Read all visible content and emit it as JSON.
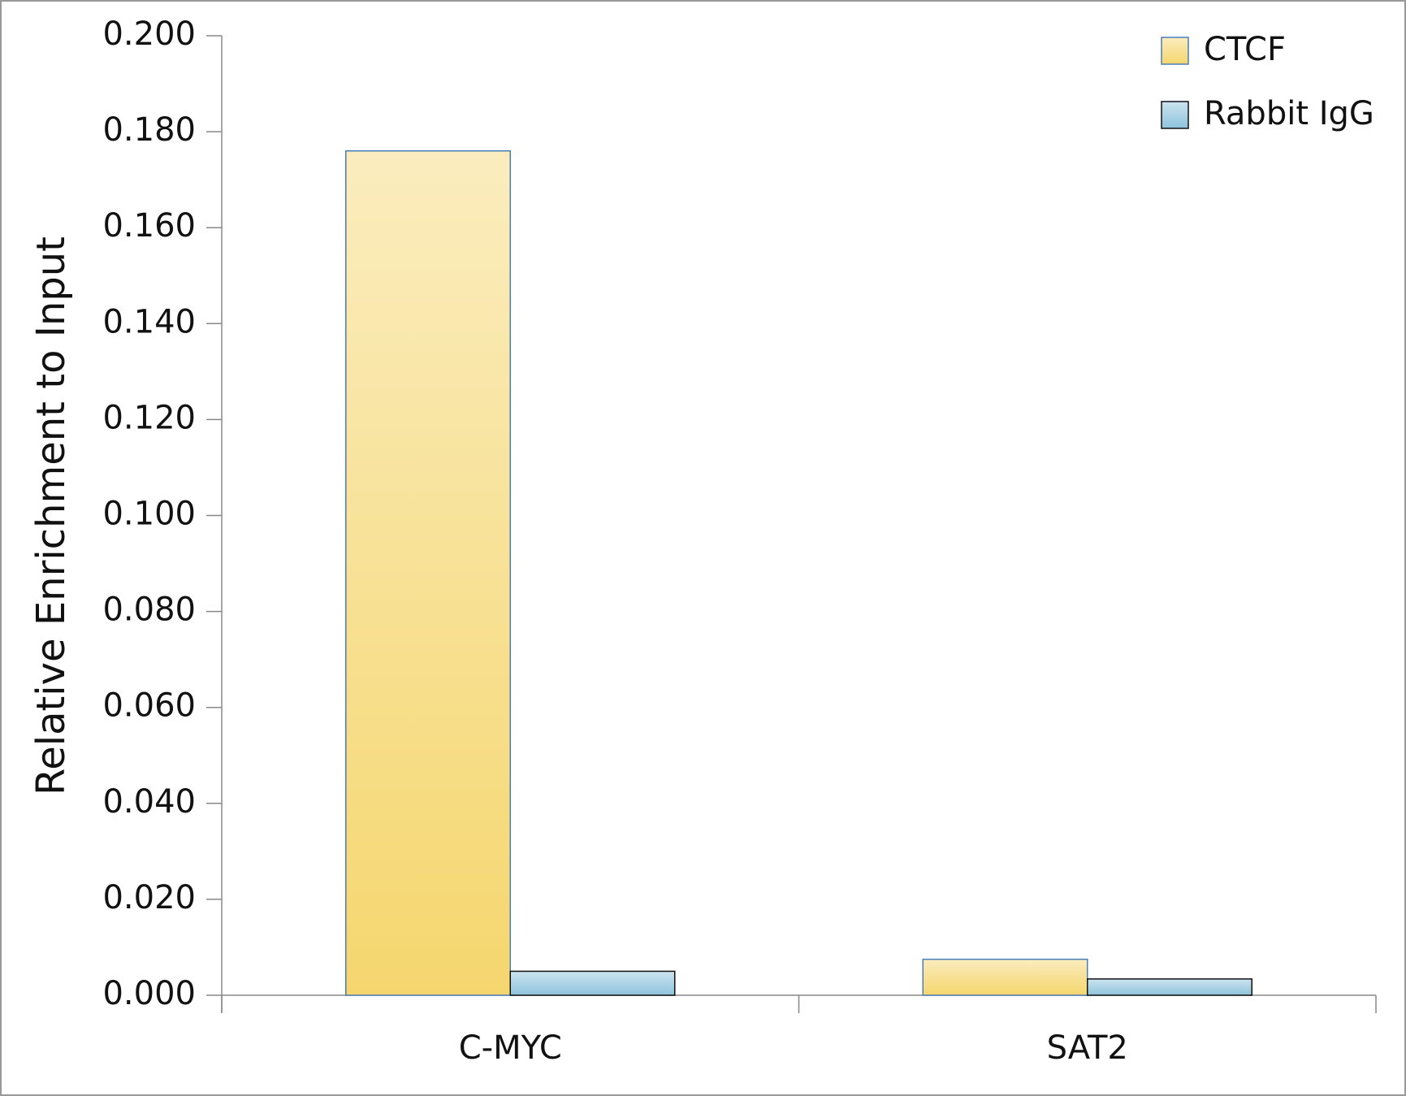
{
  "chart_data": {
    "type": "bar",
    "y_label": "Relative Enrichment to Input",
    "categories": [
      "C-MYC",
      "SAT2"
    ],
    "series": [
      {
        "name": "CTCF",
        "color": "#f5d66e",
        "edgecolor": "#4a7ebb",
        "values": [
          0.176,
          0.0075
        ]
      },
      {
        "name": "Rabbit IgG",
        "color": "#8ec3dc",
        "edgecolor": "#111111",
        "values": [
          0.005,
          0.0034
        ]
      }
    ],
    "ylim": [
      0,
      0.2
    ],
    "yticks": [
      {
        "value": 0,
        "label": "0.000"
      },
      {
        "value": 0.02,
        "label": "0.020"
      },
      {
        "value": 0.04,
        "label": "0.040"
      },
      {
        "value": 0.06,
        "label": "0.060"
      },
      {
        "value": 0.08,
        "label": "0.080"
      },
      {
        "value": 0.1,
        "label": "0.100"
      },
      {
        "value": 0.12,
        "label": "0.120"
      },
      {
        "value": 0.14,
        "label": "0.140"
      },
      {
        "value": 0.16,
        "label": "0.160"
      },
      {
        "value": 0.18,
        "label": "0.180"
      },
      {
        "value": 0.2,
        "label": "0.200"
      }
    ],
    "grid": false,
    "legend": "upper right"
  }
}
